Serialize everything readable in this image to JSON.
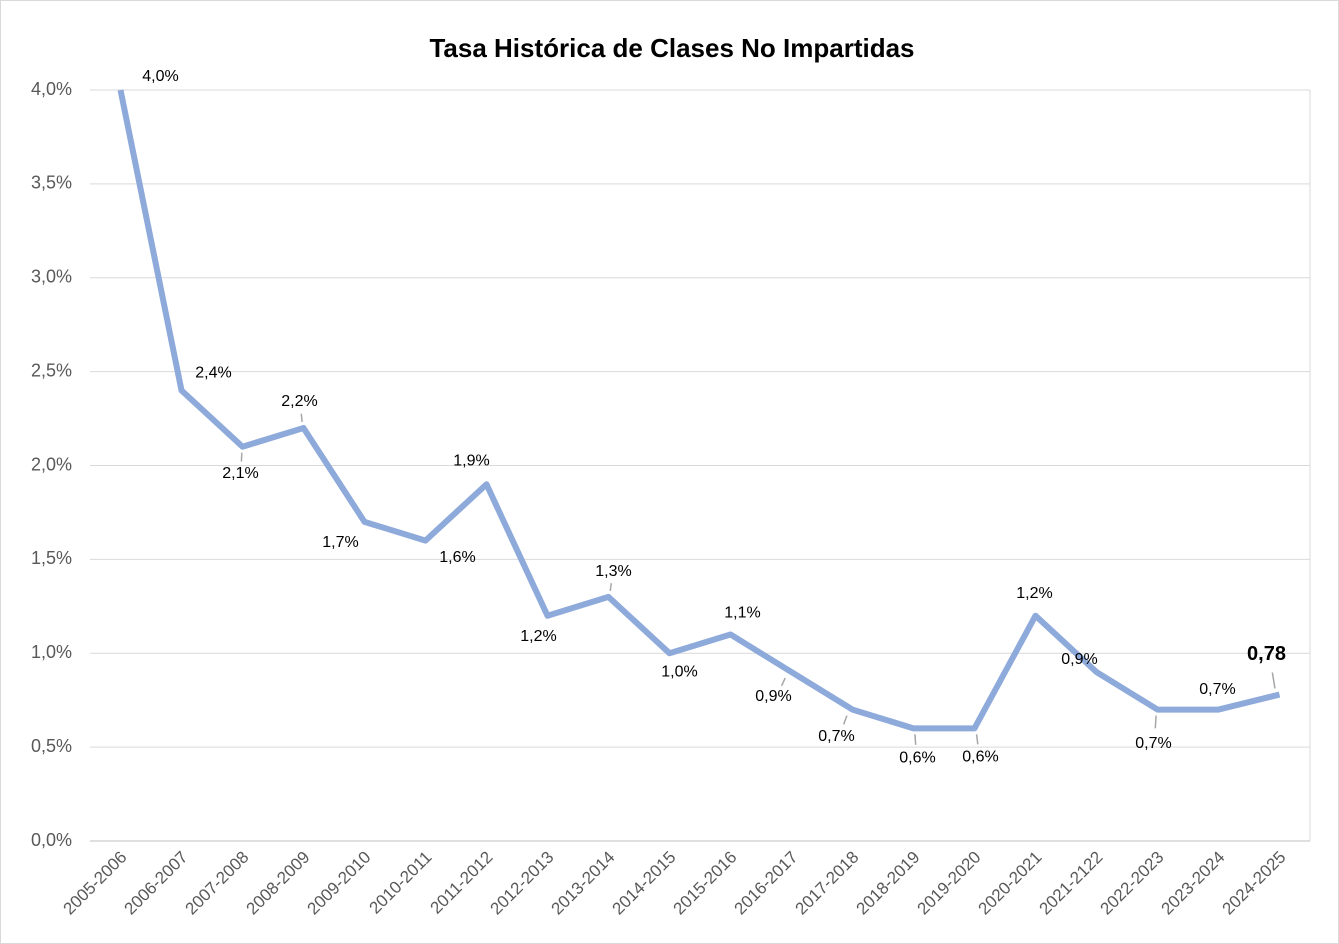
{
  "chart_data": {
    "type": "line",
    "title": "Tasa Histórica de Clases No Impartidas",
    "categories": [
      "2005-2006",
      "2006-2007",
      "2007-2008",
      "2008-2009",
      "2009-2010",
      "2010-2011",
      "2011-2012",
      "2012-2013",
      "2013-2014",
      "2014-2015",
      "2015-2016",
      "2016-2017",
      "2017-2018",
      "2018-2019",
      "2019-2020",
      "2020-2021",
      "2021-2122",
      "2022-2023",
      "2023-2024",
      "2024-2025"
    ],
    "values": [
      4.0,
      2.4,
      2.1,
      2.2,
      1.7,
      1.6,
      1.9,
      1.2,
      1.3,
      1.0,
      1.1,
      0.9,
      0.7,
      0.6,
      0.6,
      1.2,
      0.9,
      0.7,
      0.7,
      0.78
    ],
    "value_labels": [
      "4,0%",
      "2,4%",
      "2,1%",
      "2,2%",
      "1,7%",
      "1,6%",
      "1,9%",
      "1,2%",
      "1,3%",
      "1,0%",
      "1,1%",
      "0,9%",
      "0,7%",
      "0,6%",
      "0,6%",
      "1,2%",
      "0,9%",
      "0,7%",
      "0,7%",
      "0,78"
    ],
    "value_label_colors": [
      "#000000",
      "#000000",
      "#000000",
      "#000000",
      "#000000",
      "#000000",
      "#000000",
      "#000000",
      "#000000",
      "#000000",
      "#000000",
      "#000000",
      "#000000",
      "#000000",
      "#000000",
      "#000000",
      "#000000",
      "#000000",
      "#000000",
      "#c00000"
    ],
    "color": "#8eaadb",
    "ylim": [
      0,
      4
    ],
    "yticks": [
      {
        "value": 0,
        "label": "0,0%"
      },
      {
        "value": 0.5,
        "label": "0,5%"
      },
      {
        "value": 1,
        "label": "1,0%"
      },
      {
        "value": 1.5,
        "label": "1,5%"
      },
      {
        "value": 2,
        "label": "2,0%"
      },
      {
        "value": 2.5,
        "label": "2,5%"
      },
      {
        "value": 3,
        "label": "3,0%"
      },
      {
        "value": 3.5,
        "label": "3,5%"
      },
      {
        "value": 4,
        "label": "4,0%"
      }
    ],
    "grid": true
  }
}
